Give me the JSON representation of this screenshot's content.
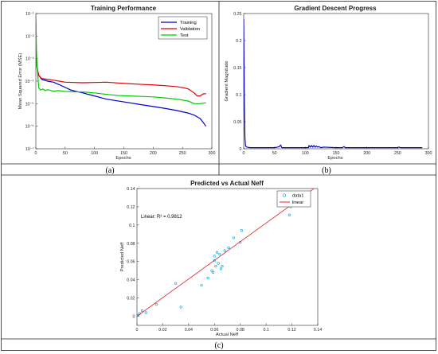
{
  "chart_data": [
    {
      "type": "line",
      "title": "Training Performance",
      "xlabel": "Epochs",
      "ylabel": "Mean Squared Error (MSE)",
      "yscale": "log",
      "xlim": [
        0,
        300
      ],
      "ylim": [
        1e-07,
        0.1
      ],
      "xticks": [
        "0",
        "50",
        "100",
        "150",
        "200",
        "250",
        "300"
      ],
      "yticks": [
        "10⁻⁷",
        "10⁻⁶",
        "10⁻⁵",
        "10⁻⁴",
        "10⁻³",
        "10⁻²",
        "10⁻¹"
      ],
      "legend_position": "top-right",
      "caption": "(a)",
      "series": [
        {
          "name": "Training",
          "color": "#0000c8",
          "x": [
            0,
            1,
            2,
            5,
            10,
            20,
            30,
            40,
            60,
            80,
            100,
            120,
            150,
            180,
            200,
            220,
            240,
            260,
            270,
            280,
            285,
            290
          ],
          "y": [
            0.01,
            0.001,
            0.0004,
            0.00018,
            0.00012,
            0.0001,
            9e-05,
            7e-05,
            4e-05,
            3e-05,
            2.2e-05,
            1.6e-05,
            1.2e-05,
            9e-06,
            7.5e-06,
            6.2e-06,
            5e-06,
            3.8e-06,
            3.1e-06,
            2.2e-06,
            1.5e-06,
            1e-06
          ]
        },
        {
          "name": "Validation",
          "color": "#e00000",
          "x": [
            0,
            1,
            2,
            5,
            10,
            20,
            30,
            40,
            50,
            60,
            80,
            100,
            120,
            140,
            160,
            180,
            200,
            220,
            240,
            250,
            260,
            270,
            275,
            280,
            285,
            290
          ],
          "y": [
            0.05,
            0.0015,
            0.0004,
            0.00018,
            0.00013,
            0.00012,
            0.00011,
            0.0001,
            9e-05,
            8.8e-05,
            8.5e-05,
            8.7e-05,
            9e-05,
            8.3e-05,
            7.7e-05,
            7.2e-05,
            6.8e-05,
            6.3e-05,
            5.7e-05,
            5.2e-05,
            4.5e-05,
            3e-05,
            2.2e-05,
            2.2e-05,
            2.7e-05,
            2.8e-05
          ]
        },
        {
          "name": "Test",
          "color": "#00c800",
          "x": [
            0,
            1,
            2,
            5,
            8,
            12,
            16,
            20,
            30,
            40,
            50,
            60,
            80,
            100,
            120,
            140,
            160,
            180,
            200,
            220,
            240,
            260,
            270,
            280,
            290
          ],
          "y": [
            0.09,
            0.002,
            0.0005,
            5e-05,
            4e-05,
            4.5e-05,
            3.8e-05,
            4.2e-05,
            3.6e-05,
            3.8e-05,
            3.5e-05,
            3.4e-05,
            3.3e-05,
            3e-05,
            2.6e-05,
            2.3e-05,
            2.2e-05,
            2.1e-05,
            2e-05,
            1.8e-05,
            1.6e-05,
            1.3e-05,
            1e-05,
            1e-05,
            1.1e-05
          ]
        }
      ]
    },
    {
      "type": "line",
      "title": "Gradient Descent Progress",
      "xlabel": "Epochs",
      "ylabel": "Gradient Magnitude",
      "xlim": [
        0,
        300
      ],
      "ylim": [
        0,
        0.25
      ],
      "xticks": [
        "0",
        "50",
        "100",
        "150",
        "200",
        "250",
        "300"
      ],
      "yticks": [
        "0",
        "0.05",
        "0.1",
        "0.15",
        "0.2",
        "0.25"
      ],
      "caption": "(b)",
      "series": [
        {
          "name": "",
          "color": "#0000c8",
          "x": [
            0,
            1,
            2,
            3,
            5,
            10,
            20,
            30,
            40,
            50,
            55,
            58,
            60,
            62,
            70,
            80,
            100,
            105,
            106,
            108,
            110,
            112,
            114,
            116,
            118,
            120,
            122,
            125,
            130,
            150,
            160,
            163,
            165,
            170,
            180,
            200,
            220,
            240,
            250,
            252,
            255,
            270,
            290
          ],
          "y": [
            0.24,
            0.1,
            0.02,
            0.005,
            0.003,
            0.002,
            0.002,
            0.002,
            0.002,
            0.002,
            0.003,
            0.004,
            0.007,
            0.002,
            0.002,
            0.002,
            0.002,
            0.002,
            0.006,
            0.003,
            0.006,
            0.003,
            0.006,
            0.003,
            0.005,
            0.003,
            0.004,
            0.002,
            0.003,
            0.002,
            0.002,
            0.004,
            0.002,
            0.002,
            0.002,
            0.002,
            0.002,
            0.002,
            0.002,
            0.003,
            0.002,
            0.002,
            0.002
          ]
        }
      ]
    },
    {
      "type": "scatter",
      "title": "Predicted vs Actual Neff",
      "xlabel": "Actual Neff",
      "ylabel": "Predicted Neff",
      "xlim": [
        0,
        0.14
      ],
      "ylim": [
        -0.01,
        0.14
      ],
      "xticks": [
        "0",
        "0.02",
        "0.04",
        "0.06",
        "0.08",
        "0.1",
        "0.12",
        "0.14"
      ],
      "yticks": [
        "0",
        "0.02",
        "0.04",
        "0.06",
        "0.08",
        "0.1",
        "0.12",
        "0.14"
      ],
      "legend_position": "top-right",
      "annotation": "Linear: R² = 0.9812",
      "caption": "(c)",
      "series": [
        {
          "name": "data1",
          "color": "#00a0d8",
          "x": [
            0.001,
            0.002,
            0.004,
            0.007,
            0.015,
            0.03,
            0.034,
            0.05,
            0.055,
            0.058,
            0.059,
            0.06,
            0.06,
            0.061,
            0.062,
            0.063,
            0.064,
            0.065,
            0.066,
            0.068,
            0.071,
            0.075,
            0.08,
            0.081,
            0.118,
            0.119
          ],
          "y": [
            0.001,
            0.003,
            0.006,
            0.004,
            0.013,
            0.036,
            0.01,
            0.034,
            0.042,
            0.05,
            0.048,
            0.061,
            0.066,
            0.055,
            0.07,
            0.058,
            0.068,
            0.052,
            0.055,
            0.072,
            0.075,
            0.086,
            0.081,
            0.094,
            0.111,
            0.12
          ]
        },
        {
          "name": "linear",
          "color": "#e02020",
          "x": [
            0,
            0.14
          ],
          "y": [
            0.0,
            0.143
          ]
        }
      ]
    }
  ]
}
